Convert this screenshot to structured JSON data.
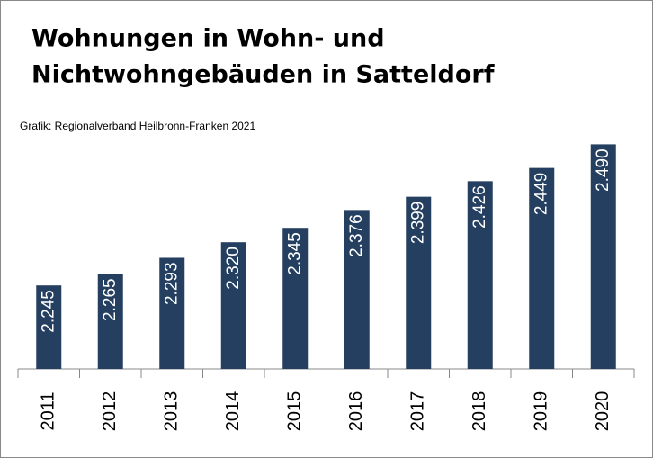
{
  "chart_data": {
    "type": "bar",
    "title": "Wohnungen in Wohn- und",
    "title_line2": "Nichtwohngebäuden in Satteldorf",
    "subtitle": "Grafik: Regionalverband Heilbronn-Franken 2021",
    "categories": [
      "2011",
      "2012",
      "2013",
      "2014",
      "2015",
      "2016",
      "2017",
      "2018",
      "2019",
      "2020"
    ],
    "values": [
      2245,
      2265,
      2293,
      2320,
      2345,
      2376,
      2399,
      2426,
      2449,
      2490
    ],
    "value_labels": [
      "2.245",
      "2.265",
      "2.293",
      "2.320",
      "2.345",
      "2.376",
      "2.399",
      "2.426",
      "2.449",
      "2.490"
    ],
    "color": "#243f60",
    "ylim": [
      2100,
      2500
    ]
  }
}
